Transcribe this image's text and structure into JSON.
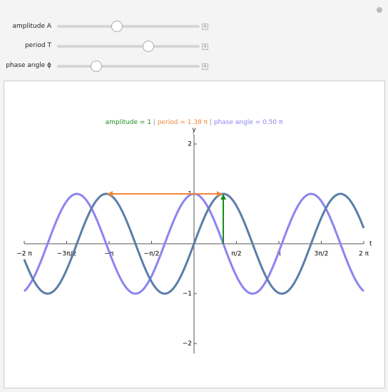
{
  "controls": [
    {
      "label": "amplitude A"
    },
    {
      "label": "period T"
    },
    {
      "label": "phase angle ϕ"
    }
  ],
  "chart_data": {
    "type": "wave",
    "amplitude": 1,
    "period": 1.38,
    "phase": 0.5,
    "legend": [
      {
        "text": "amplitude = 1",
        "color": "#1f8a1f"
      },
      {
        "text": "period = 1.38 π",
        "color": "#f0883c"
      },
      {
        "text": "phase angle = 0.50 π",
        "color": "#8b84f0"
      }
    ],
    "separator": "|",
    "xlabel": "t",
    "ylabel": "y",
    "xlim": [
      -2,
      2
    ],
    "ylim": [
      -2.2,
      2.2
    ],
    "xticks": [
      {
        "value": -2,
        "label": "−2 π"
      },
      {
        "value": -1.5,
        "label": "−3π/2"
      },
      {
        "value": -1,
        "label": "−π"
      },
      {
        "value": -0.5,
        "label": "−π/2"
      },
      {
        "value": 0.5,
        "label": "π/2"
      },
      {
        "value": 1,
        "label": "π"
      },
      {
        "value": 1.5,
        "label": "3π/2"
      },
      {
        "value": 2,
        "label": "2 π"
      }
    ],
    "yticks": [
      {
        "value": -2,
        "label": "−2"
      },
      {
        "value": -1,
        "label": "−1"
      },
      1,
      2
    ],
    "colors": {
      "wave": "#5b7ea8",
      "shifted": "#8b84f0",
      "period_arrow": "#f0883c",
      "amplitude_arrow": "#138a13"
    }
  }
}
